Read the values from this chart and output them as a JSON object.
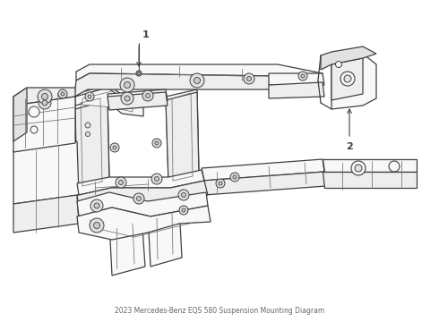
{
  "title": "2023 Mercedes-Benz EQS 580 Suspension Mounting Diagram",
  "background_color": "#ffffff",
  "line_color": "#404040",
  "inner_line_color": "#707070",
  "fill_main": "#f8f8f8",
  "fill_dark": "#eeeeee",
  "fill_darker": "#e2e2e2",
  "label1": "1",
  "label2": "2",
  "fig_width": 4.9,
  "fig_height": 3.6,
  "dpi": 100
}
